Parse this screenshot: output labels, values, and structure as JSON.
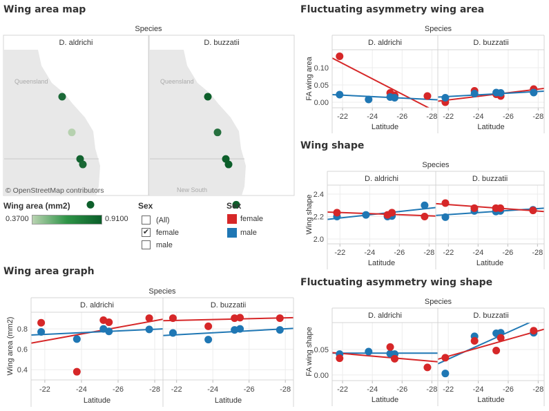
{
  "titles": {
    "map": "Wing area map",
    "fa_area": "Fluctuating asymmetry wing area",
    "shape": "Wing shape",
    "area": "Wing area graph",
    "fa_shape": "Fluctuating asymmetry wing shape"
  },
  "colors": {
    "female": "#d62728",
    "male": "#1f77b4",
    "low": "#b9d3b1",
    "high": "#0b5e2a"
  },
  "map": {
    "column_header": "Species",
    "panels": [
      "D. aldrichi",
      "D. buzzatii"
    ],
    "label_region": "Queensland",
    "label_region2": "New South",
    "attribution": "© OpenStreetMap contributors",
    "points": [
      {
        "latitude": [
          -21.8,
          -23.75,
          -25.2,
          -25.5,
          -27.7
        ],
        "wing_area": [
          0.86,
          0.38,
          0.885,
          0.865,
          0.905
        ]
      },
      {
        "latitude": [
          -21.8,
          -23.75,
          -25.2,
          -25.5,
          -27.7
        ],
        "wing_area": [
          0.905,
          0.825,
          0.905,
          0.91,
          0.905
        ]
      }
    ]
  },
  "legends": {
    "wing_area_title": "Wing area (mm2)",
    "wing_area_min": "0.3700",
    "wing_area_max": "0.9100",
    "filter_title": "Sex",
    "filter_items": [
      {
        "label": "(All)",
        "checked": false
      },
      {
        "label": "female",
        "checked": true
      },
      {
        "label": "male",
        "checked": false
      }
    ],
    "color_title": "Sex",
    "color_items": [
      {
        "label": "female",
        "key": "female"
      },
      {
        "label": "male",
        "key": "male"
      }
    ]
  },
  "chart_data": [
    {
      "id": "area",
      "type": "scatter",
      "column_header": "Species",
      "xlabel": "Latitude",
      "ylabel": "Wing area (mm2)",
      "xlim": [
        -21.25,
        -28.45
      ],
      "ylim": [
        0.3,
        0.963
      ],
      "xticks": [
        -22,
        -24,
        -26,
        -28
      ],
      "yticks": [
        0.4,
        0.6,
        0.8
      ],
      "ytick_labels": [
        "0.4",
        "0.6",
        "0.8"
      ],
      "panels": [
        {
          "name": "D. aldrichi",
          "series": [
            {
              "sex": "female",
              "x": [
                -21.8,
                -23.75,
                -25.2,
                -25.5,
                -27.7
              ],
              "y": [
                0.86,
                0.38,
                0.885,
                0.865,
                0.905
              ],
              "trend": [
                0.66,
                0.895
              ]
            },
            {
              "sex": "male",
              "x": [
                -21.8,
                -23.75,
                -25.2,
                -25.5,
                -27.7
              ],
              "y": [
                0.77,
                0.7,
                0.8,
                0.775,
                0.795
              ],
              "trend": [
                0.74,
                0.8
              ]
            }
          ]
        },
        {
          "name": "D. buzzatii",
          "series": [
            {
              "sex": "female",
              "x": [
                -21.8,
                -23.75,
                -25.2,
                -25.5,
                -27.7
              ],
              "y": [
                0.905,
                0.825,
                0.905,
                0.91,
                0.905
              ],
              "trend": [
                0.88,
                0.91
              ]
            },
            {
              "sex": "male",
              "x": [
                -21.8,
                -23.75,
                -25.2,
                -25.5,
                -27.7
              ],
              "y": [
                0.76,
                0.695,
                0.79,
                0.8,
                0.79
              ],
              "trend": [
                0.735,
                0.805
              ]
            }
          ]
        }
      ]
    },
    {
      "id": "fa_area",
      "type": "scatter",
      "column_header": "Species",
      "xlabel": "Latitude",
      "ylabel": "FA wing area",
      "xlim": [
        -21.3,
        -28.4
      ],
      "ylim": [
        -0.016,
        0.152
      ],
      "xticks": [
        -22,
        -24,
        -26,
        -28
      ],
      "yticks": [
        0.0,
        0.05,
        0.1
      ],
      "ytick_labels": [
        "0.00",
        "0.05",
        "0.10"
      ],
      "panels": [
        {
          "name": "D. aldrichi",
          "series": [
            {
              "sex": "female",
              "x": [
                -21.8,
                -25.2,
                -25.5,
                -27.7
              ],
              "y": [
                0.133,
                0.027,
                0.02,
                0.018
              ],
              "trend": [
                0.128,
                -0.03
              ]
            },
            {
              "sex": "male",
              "x": [
                -21.8,
                -23.75,
                -25.2,
                -25.5
              ],
              "y": [
                0.022,
                0.008,
                0.015,
                0.013
              ],
              "trend": [
                0.022,
                0.007
              ]
            }
          ]
        },
        {
          "name": "D. buzzatii",
          "series": [
            {
              "sex": "female",
              "x": [
                -21.8,
                -23.75,
                -25.2,
                -25.5,
                -27.7
              ],
              "y": [
                0.0,
                0.033,
                0.023,
                0.018,
                0.038
              ],
              "trend": [
                0.003,
                0.04
              ]
            },
            {
              "sex": "male",
              "x": [
                -21.8,
                -23.75,
                -25.2,
                -25.5,
                -27.7
              ],
              "y": [
                0.013,
                0.025,
                0.028,
                0.027,
                0.028
              ],
              "trend": [
                0.015,
                0.032
              ]
            }
          ]
        }
      ]
    },
    {
      "id": "shape",
      "type": "scatter",
      "column_header": "Species",
      "xlabel": "Latitude",
      "ylabel": "Wing shape",
      "xlim": [
        -21.15,
        -28.45
      ],
      "ylim": [
        1.957,
        2.48
      ],
      "xticks": [
        -22,
        -24,
        -26,
        -28
      ],
      "yticks": [
        2.0,
        2.2,
        2.4
      ],
      "ytick_labels": [
        "2.0",
        "2.2",
        "2.4"
      ],
      "panels": [
        {
          "name": "D. aldrichi",
          "series": [
            {
              "sex": "male",
              "x": [
                -21.8,
                -23.75,
                -25.2,
                -25.5,
                -27.7
              ],
              "y": [
                2.2,
                2.215,
                2.2,
                2.205,
                2.3
              ],
              "trend": [
                2.175,
                2.28
              ]
            },
            {
              "sex": "female",
              "x": [
                -21.8,
                -25.2,
                -25.5,
                -27.7
              ],
              "y": [
                2.235,
                2.215,
                2.235,
                2.2
              ],
              "trend": [
                2.24,
                2.205
              ]
            }
          ]
        },
        {
          "name": "D. buzzatii",
          "series": [
            {
              "sex": "male",
              "x": [
                -21.8,
                -23.75,
                -25.2,
                -25.5,
                -27.7
              ],
              "y": [
                2.195,
                2.25,
                2.245,
                2.25,
                2.26
              ],
              "trend": [
                2.21,
                2.275
              ]
            },
            {
              "sex": "female",
              "x": [
                -21.8,
                -23.75,
                -25.2,
                -25.5,
                -27.7
              ],
              "y": [
                2.32,
                2.275,
                2.275,
                2.275,
                2.255
              ],
              "trend": [
                2.315,
                2.245
              ]
            }
          ]
        }
      ]
    },
    {
      "id": "fa_shape",
      "type": "scatter",
      "column_header": "Species",
      "xlabel": "Latitude",
      "ylabel": "FA wing shape",
      "xlim": [
        -21.3,
        -28.4
      ],
      "ylim": [
        -0.011,
        0.103
      ],
      "xticks": [
        -22,
        -24,
        -26,
        -28
      ],
      "yticks": [
        0.0,
        0.05
      ],
      "ytick_labels": [
        "0.00",
        "0.05"
      ],
      "panels": [
        {
          "name": "D. aldrichi",
          "series": [
            {
              "sex": "male",
              "x": [
                -21.8,
                -23.75,
                -25.2,
                -25.5
              ],
              "y": [
                0.041,
                0.046,
                0.042,
                0.041
              ],
              "trend": [
                0.043,
                0.043
              ]
            },
            {
              "sex": "female",
              "x": [
                -21.8,
                -25.2,
                -25.5,
                -27.7
              ],
              "y": [
                0.033,
                0.055,
                0.032,
                0.015
              ],
              "trend": [
                0.044,
                0.026
              ]
            }
          ]
        },
        {
          "name": "D. buzzatii",
          "series": [
            {
              "sex": "male",
              "x": [
                -21.8,
                -23.75,
                -25.2,
                -25.5,
                -27.7
              ],
              "y": [
                0.003,
                0.076,
                0.082,
                0.083,
                0.083
              ],
              "trend": [
                0.022,
                0.116
              ]
            },
            {
              "sex": "female",
              "x": [
                -21.8,
                -23.75,
                -25.2,
                -25.5,
                -27.7
              ],
              "y": [
                0.034,
                0.067,
                0.048,
                0.073,
                0.087
              ],
              "trend": [
                0.031,
                0.09
              ]
            }
          ]
        }
      ]
    }
  ]
}
